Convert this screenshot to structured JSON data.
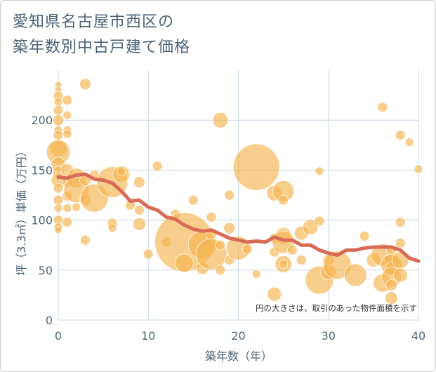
{
  "title_line1": "愛知県名古屋市西区の",
  "title_line2": "築年数別中古戸建て価格",
  "chart_data": {
    "type": "scatter",
    "title": "愛知県名古屋市西区の築年数別中古戸建て価格",
    "xlabel": "築年数（年）",
    "ylabel": "坪（3.3㎡）単価（万円）",
    "xlim": [
      0,
      40
    ],
    "ylim": [
      0,
      250
    ],
    "xticks": [
      0,
      10,
      20,
      30,
      40
    ],
    "yticks": [
      0,
      50,
      100,
      150,
      200
    ],
    "grid": true,
    "annotation": "円の大きさは、取引のあった物件面積を示す",
    "colors": {
      "bubble": "#f5b350",
      "line": "#d96a55",
      "grid": "#c9d6e3"
    },
    "bubbles": [
      {
        "x": 0,
        "y": 235,
        "s": 5
      },
      {
        "x": 0,
        "y": 230,
        "s": 5
      },
      {
        "x": 0,
        "y": 224,
        "s": 7
      },
      {
        "x": 0,
        "y": 218,
        "s": 6
      },
      {
        "x": 0,
        "y": 210,
        "s": 7
      },
      {
        "x": 0,
        "y": 200,
        "s": 8
      },
      {
        "x": 0,
        "y": 190,
        "s": 6
      },
      {
        "x": 0,
        "y": 185,
        "s": 7
      },
      {
        "x": 0,
        "y": 172,
        "s": 12
      },
      {
        "x": 0,
        "y": 168,
        "s": 17
      },
      {
        "x": 0,
        "y": 156,
        "s": 10
      },
      {
        "x": 0,
        "y": 148,
        "s": 8
      },
      {
        "x": 0,
        "y": 140,
        "s": 10
      },
      {
        "x": 0,
        "y": 132,
        "s": 7
      },
      {
        "x": 0,
        "y": 120,
        "s": 7
      },
      {
        "x": 0,
        "y": 112,
        "s": 6
      },
      {
        "x": 0,
        "y": 100,
        "s": 7
      },
      {
        "x": 0,
        "y": 93,
        "s": 6
      },
      {
        "x": 0,
        "y": 90,
        "s": 5
      },
      {
        "x": 1,
        "y": 220,
        "s": 7
      },
      {
        "x": 1,
        "y": 205,
        "s": 6
      },
      {
        "x": 1,
        "y": 190,
        "s": 6
      },
      {
        "x": 1,
        "y": 186,
        "s": 6
      },
      {
        "x": 1,
        "y": 150,
        "s": 9
      },
      {
        "x": 1,
        "y": 138,
        "s": 7
      },
      {
        "x": 1,
        "y": 124,
        "s": 7
      },
      {
        "x": 1,
        "y": 112,
        "s": 6
      },
      {
        "x": 1,
        "y": 98,
        "s": 7
      },
      {
        "x": 2,
        "y": 142,
        "s": 14
      },
      {
        "x": 2,
        "y": 130,
        "s": 18
      },
      {
        "x": 2,
        "y": 113,
        "s": 6
      },
      {
        "x": 3,
        "y": 236,
        "s": 8
      },
      {
        "x": 3,
        "y": 140,
        "s": 8
      },
      {
        "x": 3,
        "y": 120,
        "s": 8
      },
      {
        "x": 3,
        "y": 80,
        "s": 7
      },
      {
        "x": 4,
        "y": 122,
        "s": 20
      },
      {
        "x": 4,
        "y": 145,
        "s": 7
      },
      {
        "x": 6,
        "y": 138,
        "s": 22
      },
      {
        "x": 6,
        "y": 97,
        "s": 7
      },
      {
        "x": 6,
        "y": 92,
        "s": 6
      },
      {
        "x": 7,
        "y": 146,
        "s": 12
      },
      {
        "x": 7,
        "y": 149,
        "s": 6
      },
      {
        "x": 8,
        "y": 115,
        "s": 7
      },
      {
        "x": 9,
        "y": 138,
        "s": 8
      },
      {
        "x": 9,
        "y": 110,
        "s": 7
      },
      {
        "x": 9,
        "y": 96,
        "s": 9
      },
      {
        "x": 10,
        "y": 66,
        "s": 7
      },
      {
        "x": 11,
        "y": 154,
        "s": 7
      },
      {
        "x": 12,
        "y": 78,
        "s": 7
      },
      {
        "x": 13,
        "y": 106,
        "s": 7
      },
      {
        "x": 14,
        "y": 78,
        "s": 42
      },
      {
        "x": 14,
        "y": 57,
        "s": 13
      },
      {
        "x": 15,
        "y": 120,
        "s": 7
      },
      {
        "x": 16,
        "y": 75,
        "s": 20
      },
      {
        "x": 16,
        "y": 52,
        "s": 9
      },
      {
        "x": 17,
        "y": 103,
        "s": 7
      },
      {
        "x": 17,
        "y": 85,
        "s": 7
      },
      {
        "x": 17,
        "y": 66,
        "s": 22
      },
      {
        "x": 18,
        "y": 200,
        "s": 11
      },
      {
        "x": 18,
        "y": 75,
        "s": 7
      },
      {
        "x": 18,
        "y": 50,
        "s": 7
      },
      {
        "x": 19,
        "y": 125,
        "s": 7
      },
      {
        "x": 19,
        "y": 92,
        "s": 8
      },
      {
        "x": 19,
        "y": 60,
        "s": 7
      },
      {
        "x": 20,
        "y": 72,
        "s": 17
      },
      {
        "x": 21,
        "y": 71,
        "s": 7
      },
      {
        "x": 22,
        "y": 153,
        "s": 33
      },
      {
        "x": 22,
        "y": 46,
        "s": 6
      },
      {
        "x": 24,
        "y": 127,
        "s": 11
      },
      {
        "x": 24,
        "y": 82,
        "s": 7
      },
      {
        "x": 24,
        "y": 68,
        "s": 7
      },
      {
        "x": 24,
        "y": 26,
        "s": 10
      },
      {
        "x": 25,
        "y": 129,
        "s": 15
      },
      {
        "x": 25,
        "y": 120,
        "s": 7
      },
      {
        "x": 25,
        "y": 84,
        "s": 12
      },
      {
        "x": 25,
        "y": 78,
        "s": 16
      },
      {
        "x": 25,
        "y": 56,
        "s": 12
      },
      {
        "x": 25,
        "y": 56,
        "s": 6
      },
      {
        "x": 26,
        "y": 70,
        "s": 7
      },
      {
        "x": 27,
        "y": 87,
        "s": 10
      },
      {
        "x": 27,
        "y": 60,
        "s": 7
      },
      {
        "x": 28,
        "y": 93,
        "s": 11
      },
      {
        "x": 29,
        "y": 149,
        "s": 6
      },
      {
        "x": 29,
        "y": 99,
        "s": 7
      },
      {
        "x": 29,
        "y": 40,
        "s": 20
      },
      {
        "x": 30,
        "y": 60,
        "s": 8
      },
      {
        "x": 30,
        "y": 48,
        "s": 11
      },
      {
        "x": 31,
        "y": 55,
        "s": 20
      },
      {
        "x": 33,
        "y": 45,
        "s": 16
      },
      {
        "x": 34,
        "y": 84,
        "s": 7
      },
      {
        "x": 35,
        "y": 60,
        "s": 10
      },
      {
        "x": 36,
        "y": 213,
        "s": 7
      },
      {
        "x": 36,
        "y": 65,
        "s": 16
      },
      {
        "x": 36,
        "y": 37,
        "s": 13
      },
      {
        "x": 37,
        "y": 70,
        "s": 7
      },
      {
        "x": 37,
        "y": 60,
        "s": 10
      },
      {
        "x": 37,
        "y": 55,
        "s": 15
      },
      {
        "x": 37,
        "y": 52,
        "s": 9
      },
      {
        "x": 37,
        "y": 43,
        "s": 14
      },
      {
        "x": 37,
        "y": 35,
        "s": 8
      },
      {
        "x": 37,
        "y": 22,
        "s": 9
      },
      {
        "x": 38,
        "y": 185,
        "s": 7
      },
      {
        "x": 38,
        "y": 98,
        "s": 7
      },
      {
        "x": 38,
        "y": 77,
        "s": 7
      },
      {
        "x": 38,
        "y": 60,
        "s": 12
      },
      {
        "x": 38,
        "y": 45,
        "s": 10
      },
      {
        "x": 39,
        "y": 178,
        "s": 6
      },
      {
        "x": 40,
        "y": 151,
        "s": 6
      }
    ],
    "trend": {
      "x": [
        0,
        1,
        2,
        3,
        4,
        5,
        6,
        7,
        8,
        9,
        10,
        11,
        12,
        13,
        14,
        15,
        16,
        17,
        18,
        19,
        20,
        21,
        22,
        23,
        24,
        25,
        26,
        27,
        28,
        29,
        30,
        31,
        32,
        33,
        34,
        35,
        36,
        37,
        38,
        39,
        40
      ],
      "y": [
        143,
        142,
        145,
        146,
        141,
        140,
        137,
        129,
        119,
        120,
        113,
        110,
        103,
        101,
        95,
        91,
        89,
        90,
        86,
        82,
        80,
        78,
        79,
        78,
        83,
        80,
        80,
        75,
        75,
        70,
        67,
        65,
        70,
        70,
        72,
        73,
        73,
        73,
        70,
        62,
        59
      ]
    }
  }
}
